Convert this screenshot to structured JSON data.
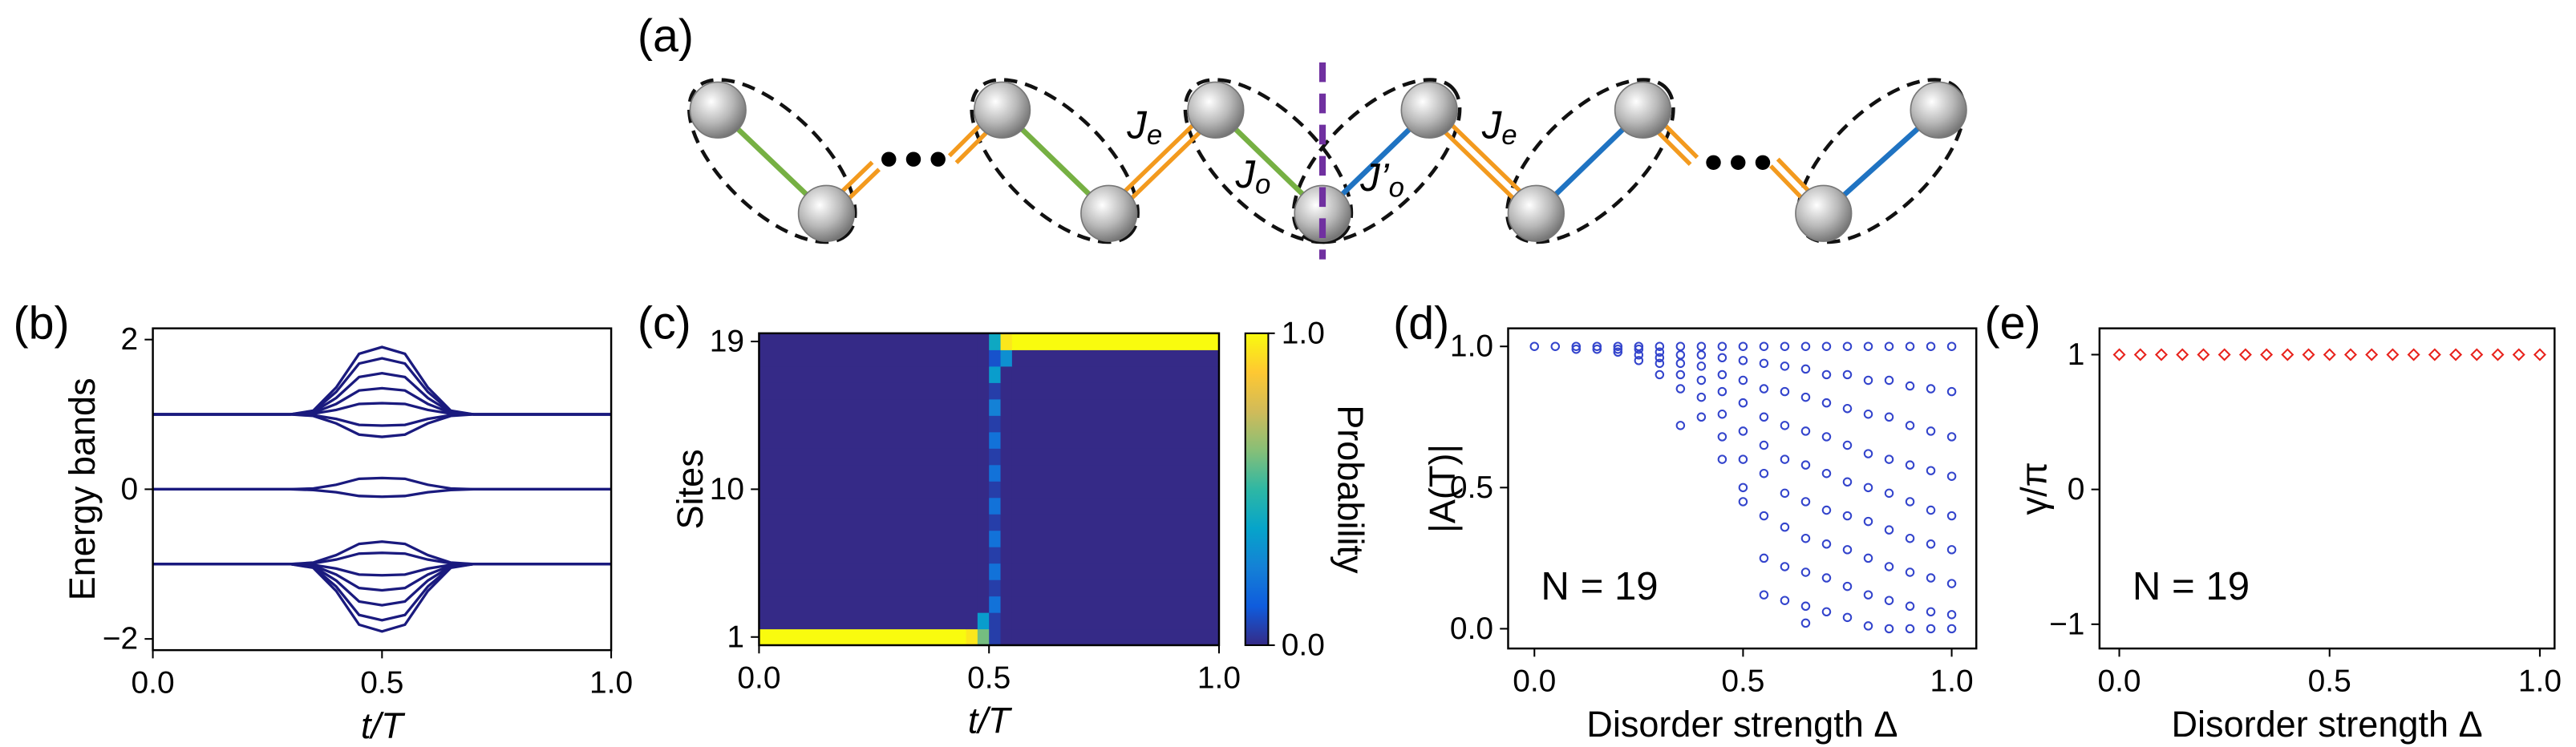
{
  "diagram": {
    "panel": "(a)",
    "labels": [
      {
        "main": "J",
        "sub": "e"
      },
      {
        "main": "J",
        "sub": "o"
      },
      {
        "main": "J’",
        "sub": "o"
      },
      {
        "main": "J",
        "sub": "e"
      }
    ]
  },
  "chart_data": [
    {
      "type": "line",
      "panel": "(b)",
      "xlabel": "t/T",
      "ylabel": "Energy bands",
      "color": "#1a1a7e",
      "xlim": [
        0,
        1
      ],
      "ylim": [
        -2.15,
        2.15
      ],
      "xticks": [
        {
          "value": 0,
          "label": "0.0"
        },
        0.5,
        {
          "value": 1,
          "label": "1.0"
        }
      ],
      "yticks": [
        {
          "value": -2,
          "label": "−2"
        },
        0,
        2
      ],
      "x": [
        0,
        0.3,
        0.35,
        0.4,
        0.45,
        0.5,
        0.55,
        0.6,
        0.65,
        0.7,
        1
      ],
      "series": [
        {
          "values": [
            1,
            1,
            1.05,
            1.36,
            1.81,
            1.9,
            1.81,
            1.36,
            1.05,
            1,
            1
          ]
        },
        {
          "values": [
            1,
            1,
            1.04,
            1.3,
            1.68,
            1.75,
            1.68,
            1.3,
            1.04,
            1,
            1
          ]
        },
        {
          "values": [
            1,
            1,
            1.03,
            1.22,
            1.5,
            1.55,
            1.5,
            1.22,
            1.03,
            1,
            1
          ]
        },
        {
          "values": [
            1,
            1,
            1.02,
            1.14,
            1.32,
            1.35,
            1.32,
            1.14,
            1.02,
            1,
            1
          ]
        },
        {
          "values": [
            1,
            1,
            1.01,
            1.06,
            1.14,
            1.15,
            1.14,
            1.06,
            1.01,
            1,
            1
          ]
        },
        {
          "values": [
            1,
            1,
            0.99,
            0.94,
            0.86,
            0.85,
            0.86,
            0.94,
            0.99,
            1,
            1
          ]
        },
        {
          "values": [
            1,
            1,
            0.98,
            0.88,
            0.73,
            0.7,
            0.73,
            0.88,
            0.98,
            1,
            1
          ]
        },
        {
          "values": [
            0,
            0,
            0.01,
            0.06,
            0.14,
            0.15,
            0.14,
            0.06,
            0.01,
            0,
            0
          ]
        },
        {
          "values": [
            0,
            0,
            -0.01,
            -0.04,
            -0.09,
            -0.1,
            -0.09,
            -0.04,
            -0.01,
            0,
            0
          ]
        },
        {
          "values": [
            -1,
            -1,
            -1.05,
            -1.36,
            -1.81,
            -1.9,
            -1.81,
            -1.36,
            -1.05,
            -1,
            -1
          ]
        },
        {
          "values": [
            -1,
            -1,
            -1.04,
            -1.3,
            -1.68,
            -1.75,
            -1.68,
            -1.3,
            -1.04,
            -1,
            -1
          ]
        },
        {
          "values": [
            -1,
            -1,
            -1.03,
            -1.22,
            -1.5,
            -1.55,
            -1.5,
            -1.22,
            -1.03,
            -1,
            -1
          ]
        },
        {
          "values": [
            -1,
            -1,
            -1.02,
            -1.14,
            -1.32,
            -1.35,
            -1.32,
            -1.14,
            -1.02,
            -1,
            -1
          ]
        },
        {
          "values": [
            -1,
            -1,
            -1.01,
            -1.06,
            -1.14,
            -1.15,
            -1.14,
            -1.06,
            -1.01,
            -1,
            -1
          ]
        },
        {
          "values": [
            -1,
            -1,
            -0.99,
            -0.94,
            -0.86,
            -0.85,
            -0.86,
            -0.94,
            -0.99,
            -1,
            -1
          ]
        },
        {
          "values": [
            -1,
            -1,
            -0.98,
            -0.88,
            -0.73,
            -0.7,
            -0.73,
            -0.88,
            -0.98,
            -1,
            -1
          ]
        }
      ]
    },
    {
      "type": "heatmap",
      "panel": "(c)",
      "xlabel": "t/T",
      "ylabel": "Sites",
      "colorbar_label": "Probability",
      "xlim": [
        0,
        1
      ],
      "ylim": [
        0.5,
        19.5
      ],
      "xticks": [
        {
          "value": 0,
          "label": "0.0"
        },
        0.5,
        {
          "value": 1,
          "label": "1.0"
        }
      ],
      "yticks": [
        1,
        10,
        19
      ],
      "clim": [
        0,
        1
      ],
      "cbar_ticks": [
        {
          "value": 0,
          "label": "0.0"
        },
        {
          "value": 1,
          "label": "1.0"
        }
      ],
      "colormap": [
        "#352a87",
        "#0f5cdd",
        "#1481d6",
        "#06a4ca",
        "#2eb7a4",
        "#87bf77",
        "#d1bb59",
        "#fec832",
        "#f9fb0e"
      ],
      "x_edges": [
        0,
        0.45,
        0.475,
        0.5,
        0.525,
        0.55,
        1
      ],
      "y": [
        1,
        2,
        3,
        4,
        5,
        6,
        7,
        8,
        9,
        10,
        11,
        12,
        13,
        14,
        15,
        16,
        17,
        18,
        19
      ],
      "z": [
        [
          1,
          0.95,
          0.6,
          0.05,
          0,
          0
        ],
        [
          0,
          0,
          0.35,
          0.05,
          0,
          0
        ],
        [
          0,
          0,
          0,
          0.2,
          0,
          0
        ],
        [
          0,
          0,
          0,
          0.05,
          0,
          0
        ],
        [
          0,
          0,
          0,
          0.2,
          0,
          0
        ],
        [
          0,
          0,
          0,
          0.05,
          0,
          0
        ],
        [
          0,
          0,
          0,
          0.2,
          0,
          0
        ],
        [
          0,
          0,
          0,
          0.05,
          0,
          0
        ],
        [
          0,
          0,
          0,
          0.2,
          0,
          0
        ],
        [
          0,
          0,
          0,
          0.05,
          0,
          0
        ],
        [
          0,
          0,
          0,
          0.2,
          0,
          0
        ],
        [
          0,
          0,
          0,
          0.05,
          0,
          0
        ],
        [
          0,
          0,
          0,
          0.2,
          0,
          0
        ],
        [
          0,
          0,
          0,
          0.05,
          0,
          0
        ],
        [
          0,
          0,
          0,
          0.25,
          0,
          0
        ],
        [
          0,
          0,
          0,
          0.05,
          0,
          0
        ],
        [
          0,
          0,
          0,
          0.35,
          0,
          0
        ],
        [
          0,
          0,
          0,
          0.1,
          0.3,
          0
        ],
        [
          0,
          0,
          0,
          0.4,
          0.95,
          1
        ]
      ]
    },
    {
      "type": "scatter",
      "panel": "(d)",
      "xlabel": "Disorder strength Δ",
      "ylabel": "|A(T)|",
      "note": "N = 19",
      "marker": "circle",
      "color": "#3344cc",
      "xlim": [
        -0.063,
        1.059
      ],
      "ylim": [
        -0.07,
        1.064
      ],
      "xticks": [
        {
          "value": 0,
          "label": "0.0"
        },
        0.5,
        {
          "value": 1,
          "label": "1.0"
        }
      ],
      "yticks": [
        {
          "value": 0,
          "label": "0.0"
        },
        0.5,
        {
          "value": 1,
          "label": "1.0"
        }
      ],
      "x": [
        0,
        0.05,
        0.1,
        0.1,
        0.15,
        0.15,
        0.2,
        0.2,
        0.2,
        0.25,
        0.25,
        0.25,
        0.25,
        0.3,
        0.3,
        0.3,
        0.3,
        0.3,
        0.35,
        0.35,
        0.35,
        0.35,
        0.35,
        0.35,
        0.4,
        0.4,
        0.4,
        0.4,
        0.4,
        0.4,
        0.45,
        0.45,
        0.45,
        0.45,
        0.45,
        0.45,
        0.45,
        0.5,
        0.5,
        0.5,
        0.5,
        0.5,
        0.5,
        0.5,
        0.5,
        0.55,
        0.55,
        0.55,
        0.55,
        0.55,
        0.55,
        0.55,
        0.55,
        0.55,
        0.6,
        0.6,
        0.6,
        0.6,
        0.6,
        0.6,
        0.6,
        0.6,
        0.6,
        0.65,
        0.65,
        0.65,
        0.65,
        0.65,
        0.65,
        0.65,
        0.65,
        0.65,
        0.65,
        0.7,
        0.7,
        0.7,
        0.7,
        0.7,
        0.7,
        0.7,
        0.7,
        0.7,
        0.75,
        0.75,
        0.75,
        0.75,
        0.75,
        0.75,
        0.75,
        0.75,
        0.75,
        0.8,
        0.8,
        0.8,
        0.8,
        0.8,
        0.8,
        0.8,
        0.8,
        0.8,
        0.85,
        0.85,
        0.85,
        0.85,
        0.85,
        0.85,
        0.85,
        0.85,
        0.85,
        0.9,
        0.9,
        0.9,
        0.9,
        0.9,
        0.9,
        0.9,
        0.9,
        0.9,
        0.95,
        0.95,
        0.95,
        0.95,
        0.95,
        0.95,
        0.95,
        0.95,
        0.95,
        1,
        1,
        1,
        1,
        1,
        1,
        1,
        1,
        1
      ],
      "y": [
        1,
        1,
        1,
        0.99,
        1,
        0.99,
        1,
        0.99,
        0.98,
        1,
        0.99,
        0.97,
        0.95,
        1,
        0.98,
        0.96,
        0.94,
        0.9,
        1,
        0.97,
        0.94,
        0.9,
        0.85,
        0.72,
        1,
        0.97,
        0.93,
        0.88,
        0.82,
        0.75,
        1,
        0.96,
        0.9,
        0.84,
        0.76,
        0.68,
        0.6,
        1,
        0.95,
        0.88,
        0.8,
        0.7,
        0.6,
        0.5,
        0.45,
        1,
        0.94,
        0.85,
        0.75,
        0.65,
        0.55,
        0.4,
        0.25,
        0.12,
        1,
        0.93,
        0.84,
        0.72,
        0.6,
        0.48,
        0.36,
        0.22,
        0.1,
        1,
        0.92,
        0.82,
        0.7,
        0.58,
        0.45,
        0.32,
        0.2,
        0.08,
        0.02,
        1,
        0.9,
        0.8,
        0.68,
        0.55,
        0.42,
        0.3,
        0.18,
        0.06,
        1,
        0.9,
        0.78,
        0.65,
        0.52,
        0.4,
        0.28,
        0.15,
        0.04,
        1,
        0.88,
        0.76,
        0.62,
        0.5,
        0.38,
        0.25,
        0.12,
        0.01,
        1,
        0.88,
        0.75,
        0.6,
        0.48,
        0.35,
        0.22,
        0.1,
        0,
        1,
        0.86,
        0.72,
        0.58,
        0.45,
        0.32,
        0.2,
        0.08,
        0,
        1,
        0.85,
        0.7,
        0.56,
        0.42,
        0.3,
        0.18,
        0.06,
        0,
        1,
        0.84,
        0.68,
        0.54,
        0.4,
        0.28,
        0.16,
        0.05,
        0
      ]
    },
    {
      "type": "scatter",
      "panel": "(e)",
      "xlabel": "Disorder strength Δ",
      "ylabel": "γ/π",
      "note": "N = 19",
      "marker": "diamond",
      "color": "#e8221c",
      "xlim": [
        -0.047,
        1.035
      ],
      "ylim": [
        -1.18,
        1.195
      ],
      "xticks": [
        {
          "value": 0,
          "label": "0.0"
        },
        0.5,
        {
          "value": 1,
          "label": "1.0"
        }
      ],
      "yticks": [
        {
          "value": -1,
          "label": "−1"
        },
        0,
        1
      ],
      "x": [
        0,
        0.05,
        0.1,
        0.15,
        0.2,
        0.25,
        0.3,
        0.35,
        0.4,
        0.45,
        0.5,
        0.55,
        0.6,
        0.65,
        0.7,
        0.75,
        0.8,
        0.85,
        0.9,
        0.95,
        1
      ],
      "y": [
        1,
        1,
        1,
        1,
        1,
        1,
        1,
        1,
        1,
        1,
        1,
        1,
        1,
        1,
        1,
        1,
        1,
        1,
        1,
        1,
        1
      ]
    }
  ]
}
